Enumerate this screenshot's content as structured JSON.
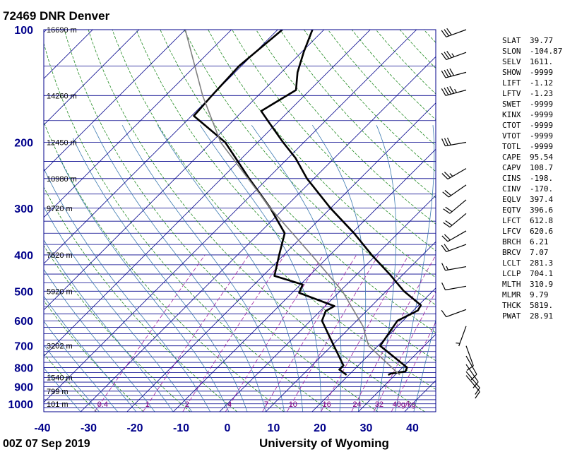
{
  "header": {
    "title": "72469 DNR Denver"
  },
  "footer": {
    "time": "00Z 07 Sep 2019",
    "source": "University of Wyoming"
  },
  "colors": {
    "isobar": "#00008b",
    "isotherm": "#00008b",
    "dry_adiabat": "#228b22",
    "moist_adiabat": "#3c7ab0",
    "mixing_ratio": "#a020a0",
    "sounding": "#000000",
    "parcel": "#808080",
    "axis_label": "#00008b"
  },
  "chart_data": {
    "type": "line",
    "title": "72469 DNR Denver",
    "xlabel": "",
    "ylabel": "",
    "xlim": [
      -40,
      45
    ],
    "ylim_hpa": [
      1050,
      100
    ],
    "pressure_ticks": [
      {
        "p": 100,
        "label": "100"
      },
      {
        "p": 200,
        "label": "200"
      },
      {
        "p": 300,
        "label": "300"
      },
      {
        "p": 400,
        "label": "400"
      },
      {
        "p": 500,
        "label": "500"
      },
      {
        "p": 600,
        "label": "600"
      },
      {
        "p": 700,
        "label": "700"
      },
      {
        "p": 800,
        "label": "800"
      },
      {
        "p": 900,
        "label": "900"
      },
      {
        "p": 1000,
        "label": "1000"
      }
    ],
    "temperature_ticks": [
      {
        "t": -40,
        "label": "-40"
      },
      {
        "t": -30,
        "label": "-30"
      },
      {
        "t": -20,
        "label": "-20"
      },
      {
        "t": -10,
        "label": "-10"
      },
      {
        "t": 0,
        "label": "0"
      },
      {
        "t": 10,
        "label": "10"
      },
      {
        "t": 20,
        "label": "20"
      },
      {
        "t": 30,
        "label": "30"
      },
      {
        "t": 40,
        "label": "40"
      }
    ],
    "height_labels": [
      {
        "p": 100,
        "label": "16690 m"
      },
      {
        "p": 150,
        "label": "14260 m"
      },
      {
        "p": 200,
        "label": "12450 m"
      },
      {
        "p": 250,
        "label": "10980 m"
      },
      {
        "p": 300,
        "label": "9720 m"
      },
      {
        "p": 400,
        "label": "7620 m"
      },
      {
        "p": 500,
        "label": "5920 m"
      },
      {
        "p": 700,
        "label": "3202 m"
      },
      {
        "p": 850,
        "label": "1540 m"
      },
      {
        "p": 925,
        "label": "799 m"
      },
      {
        "p": 1000,
        "label": "101 m"
      }
    ],
    "mixing_ratio_labels": [
      {
        "w": 0.4,
        "label": "0.4"
      },
      {
        "w": 1,
        "label": "1"
      },
      {
        "w": 2,
        "label": "2"
      },
      {
        "w": 4,
        "label": "4"
      },
      {
        "w": 7,
        "label": "7"
      },
      {
        "w": 10,
        "label": "10"
      },
      {
        "w": 16,
        "label": "16"
      },
      {
        "w": 24,
        "label": "24"
      },
      {
        "w": 32,
        "label": "32"
      },
      {
        "w": 40,
        "label": "40g/kg"
      }
    ],
    "series": [
      {
        "key": "temperature",
        "points": [
          {
            "p": 837,
            "t": 28.5
          },
          {
            "p": 830,
            "t": 28.8
          },
          {
            "p": 820,
            "t": 31.5
          },
          {
            "p": 800,
            "t": 31.0
          },
          {
            "p": 770,
            "t": 28.0
          },
          {
            "p": 700,
            "t": 20.5
          },
          {
            "p": 600,
            "t": 18.8
          },
          {
            "p": 563,
            "t": 21.0
          },
          {
            "p": 545,
            "t": 20.5
          },
          {
            "p": 500,
            "t": 13.8
          },
          {
            "p": 450,
            "t": 7.0
          },
          {
            "p": 400,
            "t": -1.0
          },
          {
            "p": 350,
            "t": -9.5
          },
          {
            "p": 300,
            "t": -20.0
          },
          {
            "p": 250,
            "t": -31.5
          },
          {
            "p": 220,
            "t": -38.5
          },
          {
            "p": 200,
            "t": -44.5
          },
          {
            "p": 175,
            "t": -52.5
          },
          {
            "p": 165,
            "t": -56.0
          },
          {
            "p": 145,
            "t": -53.0
          },
          {
            "p": 130,
            "t": -56.5
          },
          {
            "p": 115,
            "t": -59.5
          },
          {
            "p": 100,
            "t": -62.5
          }
        ]
      },
      {
        "key": "dewpoint",
        "points": [
          {
            "p": 837,
            "t": 19.5
          },
          {
            "p": 810,
            "t": 16.8
          },
          {
            "p": 790,
            "t": 16.8
          },
          {
            "p": 700,
            "t": 10.5
          },
          {
            "p": 600,
            "t": 2.5
          },
          {
            "p": 565,
            "t": 1.2
          },
          {
            "p": 548,
            "t": 2.0
          },
          {
            "p": 505,
            "t": -8.5
          },
          {
            "p": 480,
            "t": -9.5
          },
          {
            "p": 455,
            "t": -17.5
          },
          {
            "p": 400,
            "t": -21.0
          },
          {
            "p": 350,
            "t": -24.5
          },
          {
            "p": 300,
            "t": -33.0
          },
          {
            "p": 250,
            "t": -44.0
          },
          {
            "p": 200,
            "t": -57.0
          },
          {
            "p": 170,
            "t": -69.5
          },
          {
            "p": 150,
            "t": -70.0
          },
          {
            "p": 125,
            "t": -70.5
          },
          {
            "p": 100,
            "t": -69.0
          }
        ]
      },
      {
        "key": "parcel",
        "points": [
          {
            "p": 837,
            "t": 31.0
          },
          {
            "p": 700,
            "t": 18.0
          },
          {
            "p": 620,
            "t": 12.5
          },
          {
            "p": 500,
            "t": 0.5
          },
          {
            "p": 400,
            "t": -14.0
          },
          {
            "p": 300,
            "t": -33.0
          },
          {
            "p": 200,
            "t": -58.0
          },
          {
            "p": 150,
            "t": -72.0
          },
          {
            "p": 100,
            "t": -90.0
          }
        ]
      }
    ],
    "wind_barbs": [
      {
        "p": 100,
        "dir": 250,
        "spd": 30
      },
      {
        "p": 115,
        "dir": 250,
        "spd": 35
      },
      {
        "p": 130,
        "dir": 255,
        "spd": 40
      },
      {
        "p": 145,
        "dir": 255,
        "spd": 45
      },
      {
        "p": 200,
        "dir": 260,
        "spd": 30
      },
      {
        "p": 235,
        "dir": 240,
        "spd": 25
      },
      {
        "p": 260,
        "dir": 235,
        "spd": 20
      },
      {
        "p": 285,
        "dir": 230,
        "spd": 20
      },
      {
        "p": 310,
        "dir": 230,
        "spd": 20
      },
      {
        "p": 345,
        "dir": 240,
        "spd": 20
      },
      {
        "p": 375,
        "dir": 250,
        "spd": 20
      },
      {
        "p": 430,
        "dir": 260,
        "spd": 15
      },
      {
        "p": 485,
        "dir": 260,
        "spd": 10
      },
      {
        "p": 560,
        "dir": 250,
        "spd": 10
      },
      {
        "p": 620,
        "dir": 200,
        "spd": 5
      },
      {
        "p": 700,
        "dir": 160,
        "spd": 10
      },
      {
        "p": 745,
        "dir": 150,
        "spd": 10
      },
      {
        "p": 785,
        "dir": 145,
        "spd": 10
      },
      {
        "p": 820,
        "dir": 140,
        "spd": 10
      },
      {
        "p": 840,
        "dir": 140,
        "spd": 10
      }
    ]
  },
  "indices": [
    {
      "name": "SLAT",
      "value": "39.77"
    },
    {
      "name": "SLON",
      "value": "-104.87"
    },
    {
      "name": "SELV",
      "value": "1611."
    },
    {
      "name": "SHOW",
      "value": "-9999"
    },
    {
      "name": "LIFT",
      "value": "-1.12"
    },
    {
      "name": "LFTV",
      "value": "-1.23"
    },
    {
      "name": "SWET",
      "value": "-9999"
    },
    {
      "name": "KINX",
      "value": "-9999"
    },
    {
      "name": "CTOT",
      "value": "-9999"
    },
    {
      "name": "VTOT",
      "value": "-9999"
    },
    {
      "name": "TOTL",
      "value": "-9999"
    },
    {
      "name": "CAPE",
      "value": "95.54"
    },
    {
      "name": "CAPV",
      "value": "108.7"
    },
    {
      "name": "CINS",
      "value": "-198."
    },
    {
      "name": "CINV",
      "value": "-170."
    },
    {
      "name": "EQLV",
      "value": "397.4"
    },
    {
      "name": "EQTV",
      "value": "396.6"
    },
    {
      "name": "LFCT",
      "value": "612.8"
    },
    {
      "name": "LFCV",
      "value": "620.6"
    },
    {
      "name": "BRCH",
      "value": "6.21"
    },
    {
      "name": "BRCV",
      "value": "7.07"
    },
    {
      "name": "LCLT",
      "value": "281.3"
    },
    {
      "name": "LCLP",
      "value": "704.1"
    },
    {
      "name": "MLTH",
      "value": "310.9"
    },
    {
      "name": "MLMR",
      "value": "9.79"
    },
    {
      "name": "THCK",
      "value": "5819."
    },
    {
      "name": "PWAT",
      "value": "28.91"
    }
  ]
}
